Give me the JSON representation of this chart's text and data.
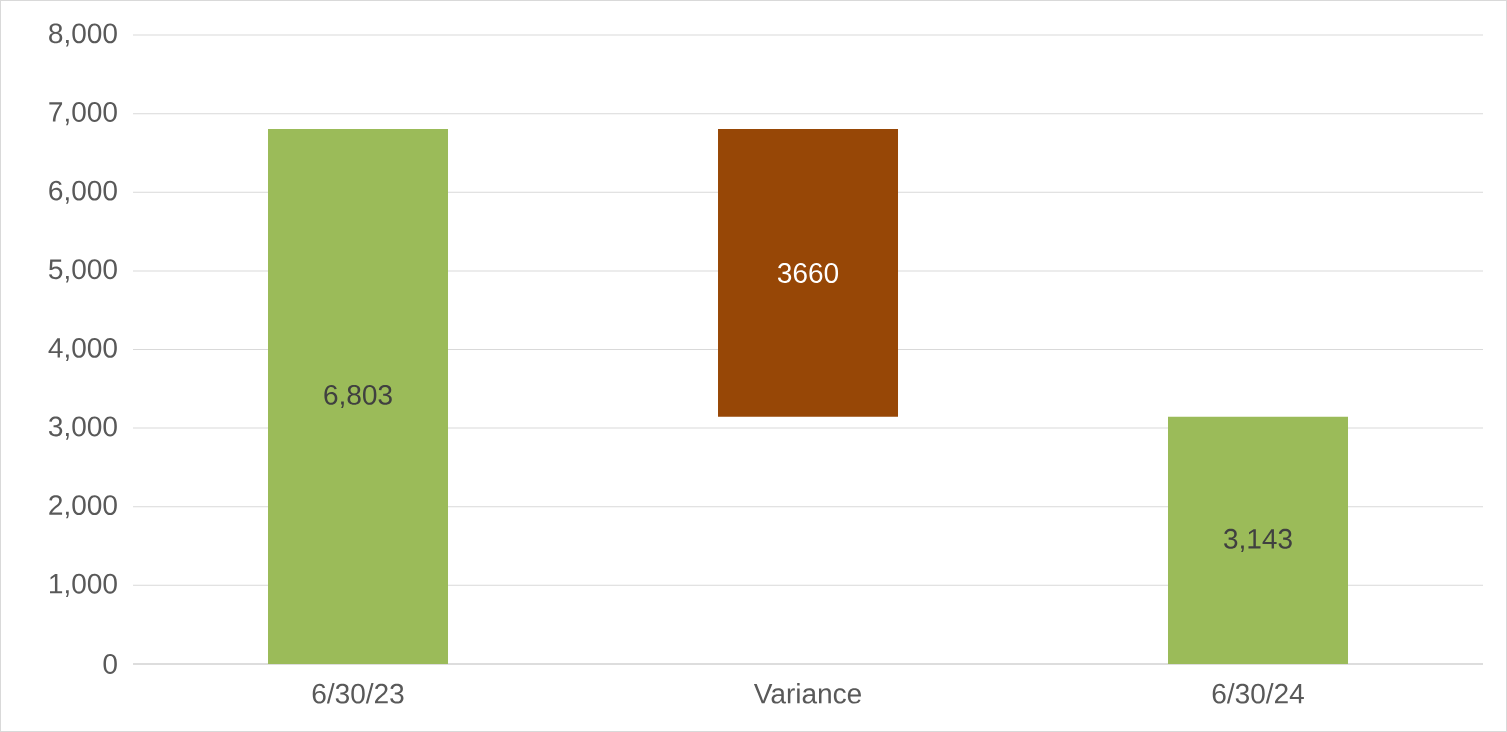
{
  "chart_data": {
    "type": "bar",
    "categories": [
      "6/30/23",
      "Variance",
      "6/30/24"
    ],
    "values": [
      6803,
      3660,
      3143
    ],
    "base": [
      0,
      3143,
      0
    ],
    "colors": [
      "#9bbb59",
      "#974706",
      "#9bbb59"
    ],
    "value_labels": [
      "6,803",
      "3660",
      "3,143"
    ],
    "ylim": [
      0,
      8000
    ],
    "yticks": [
      0,
      {
        "value": 1000,
        "label": "1,000"
      },
      {
        "value": 2000,
        "label": "2,000"
      },
      {
        "value": 3000,
        "label": "3,000"
      },
      {
        "value": 4000,
        "label": "4,000"
      },
      {
        "value": 5000,
        "label": "5,000"
      },
      {
        "value": 6000,
        "label": "6,000"
      },
      {
        "value": 7000,
        "label": "7,000"
      },
      {
        "value": 8000,
        "label": "8,000"
      }
    ],
    "grid": "y"
  }
}
